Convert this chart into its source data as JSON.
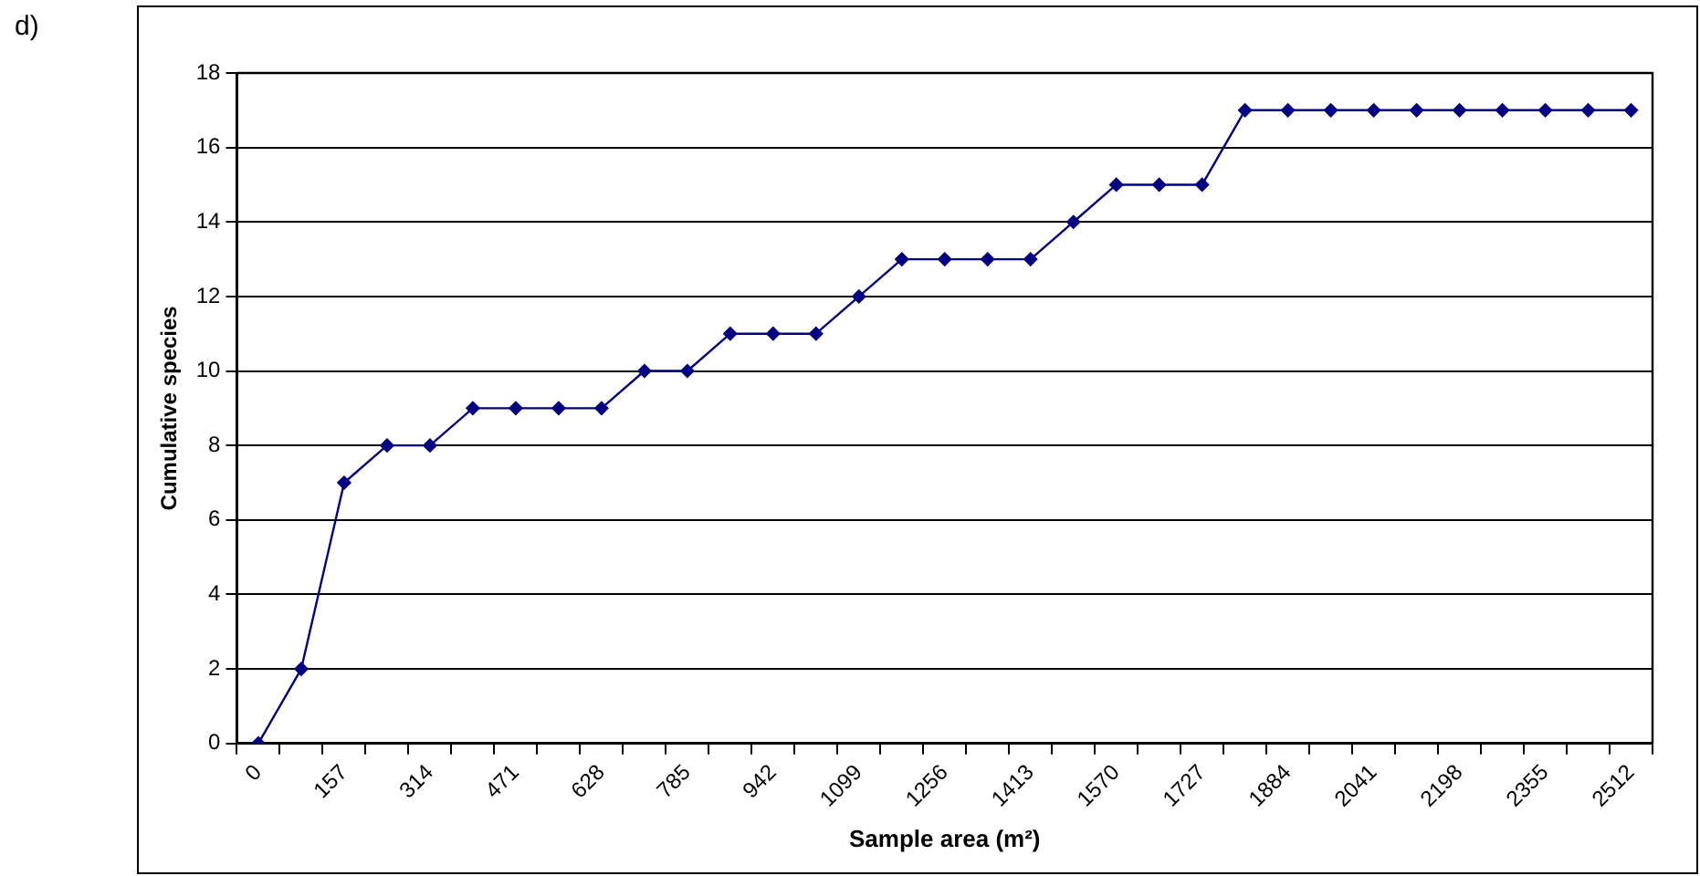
{
  "chart_data": {
    "type": "line",
    "xlabel": "Sample area (m²)",
    "ylabel": "Cumulative species",
    "annotations": [
      "d)"
    ],
    "categories": [
      "0",
      null,
      "157",
      null,
      "314",
      null,
      "471",
      null,
      "628",
      null,
      "785",
      null,
      "942",
      null,
      "1099",
      null,
      "1256",
      null,
      "1413",
      null,
      "1570",
      null,
      "1727",
      null,
      "1884",
      null,
      "2041",
      null,
      "2198",
      null,
      "2355",
      null,
      "2512"
    ],
    "series": [
      {
        "color": "#000080",
        "values": [
          0,
          2,
          7,
          8,
          8,
          9,
          9,
          9,
          9,
          10,
          10,
          11,
          11,
          11,
          12,
          13,
          13,
          13,
          13,
          14,
          15,
          15,
          15,
          17,
          17,
          17,
          17,
          17,
          17,
          17,
          17,
          17,
          17
        ]
      }
    ],
    "ylim": [
      0,
      18
    ],
    "yticks": [
      0,
      2,
      4,
      6,
      8,
      10,
      12,
      14,
      16,
      18
    ],
    "grid": "y",
    "legend": false,
    "marker": "diamond",
    "line_style": "solid"
  }
}
